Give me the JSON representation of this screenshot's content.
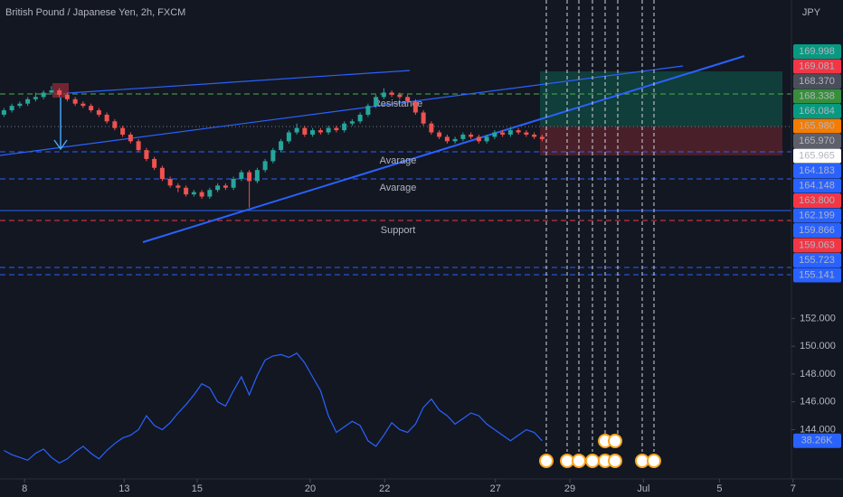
{
  "chart_data": {
    "type": "candlestick",
    "title": "British Pound / Japanese Yen, 2h, FXCM",
    "currency": "JPY",
    "up_color": "#26a69a",
    "down_color": "#ef5350",
    "ylim": [
      158.5,
      170.75
    ],
    "open": [
      167.2,
      167.4,
      167.6,
      167.7,
      167.9,
      168.0,
      168.2,
      168.3,
      168.1,
      167.9,
      167.7,
      167.6,
      167.4,
      167.2,
      166.9,
      166.6,
      166.3,
      166.0,
      165.6,
      165.2,
      164.8,
      164.3,
      164.0,
      163.9,
      163.6,
      163.7,
      163.5,
      163.8,
      164.0,
      163.9,
      164.3,
      164.6,
      164.2,
      164.7,
      165.1,
      165.6,
      166.0,
      166.4,
      166.6,
      166.3,
      166.5,
      166.4,
      166.6,
      166.5,
      166.8,
      166.9,
      167.2,
      167.6,
      168.0,
      168.2,
      168.1,
      168.0,
      167.8,
      167.3,
      166.8,
      166.4,
      166.2,
      166.0,
      166.1,
      166.3,
      166.2,
      166.0,
      166.2,
      166.4,
      166.3,
      166.5,
      166.4,
      166.3,
      166.2
    ],
    "high": [
      167.5,
      167.7,
      167.8,
      168.0,
      168.2,
      168.3,
      168.5,
      168.4,
      168.2,
      168.0,
      167.8,
      167.7,
      167.5,
      167.3,
      167.0,
      166.7,
      166.4,
      166.1,
      165.7,
      165.3,
      164.9,
      164.4,
      164.1,
      164.0,
      163.8,
      163.8,
      163.9,
      164.1,
      164.1,
      164.4,
      164.7,
      164.7,
      164.8,
      165.2,
      165.7,
      166.1,
      166.5,
      166.8,
      166.7,
      166.6,
      166.6,
      166.7,
      166.7,
      166.9,
      167.0,
      167.3,
      167.7,
      168.1,
      168.4,
      168.3,
      168.2,
      168.1,
      167.9,
      167.4,
      166.9,
      166.5,
      166.3,
      166.2,
      166.4,
      166.4,
      166.3,
      166.3,
      166.5,
      166.5,
      166.6,
      166.6,
      166.5,
      166.4,
      166.3
    ],
    "low": [
      167.1,
      167.3,
      167.5,
      167.6,
      167.8,
      167.9,
      168.1,
      168.0,
      167.8,
      167.6,
      167.5,
      167.3,
      167.1,
      166.8,
      166.5,
      166.2,
      165.9,
      165.5,
      165.1,
      164.7,
      164.2,
      163.9,
      163.7,
      163.5,
      163.5,
      163.4,
      163.4,
      163.7,
      163.8,
      163.8,
      164.2,
      163.0,
      164.1,
      164.6,
      165.0,
      165.5,
      165.9,
      166.3,
      166.2,
      166.2,
      166.3,
      166.3,
      166.4,
      166.4,
      166.7,
      166.8,
      167.1,
      167.5,
      167.9,
      168.0,
      167.9,
      167.7,
      167.2,
      166.7,
      166.3,
      166.1,
      165.9,
      165.9,
      166.0,
      166.1,
      165.9,
      165.9,
      166.1,
      166.2,
      166.2,
      166.3,
      166.2,
      166.1,
      166.0
    ],
    "close": [
      167.4,
      167.6,
      167.7,
      167.9,
      168.0,
      168.2,
      168.3,
      168.1,
      167.9,
      167.7,
      167.6,
      167.4,
      167.2,
      166.9,
      166.6,
      166.3,
      166.0,
      165.6,
      165.2,
      164.8,
      164.3,
      164.0,
      163.9,
      163.6,
      163.7,
      163.5,
      163.8,
      164.0,
      163.9,
      164.3,
      164.6,
      164.2,
      164.7,
      165.1,
      165.6,
      166.0,
      166.4,
      166.6,
      166.3,
      166.5,
      166.4,
      166.6,
      166.5,
      166.8,
      166.9,
      167.2,
      167.6,
      168.0,
      168.2,
      168.1,
      168.0,
      167.8,
      167.3,
      166.8,
      166.4,
      166.2,
      166.0,
      166.1,
      166.3,
      166.2,
      166.0,
      166.2,
      166.4,
      166.3,
      166.5,
      166.4,
      166.3,
      166.2,
      166.1
    ],
    "xlim": [
      0,
      100
    ],
    "xticks": [
      {
        "value": 3.1,
        "label": "8"
      },
      {
        "value": 15.7,
        "label": "13"
      },
      {
        "value": 24.9,
        "label": "15"
      },
      {
        "value": 39.2,
        "label": "20"
      },
      {
        "value": 48.6,
        "label": "22"
      },
      {
        "value": 62.6,
        "label": "27"
      },
      {
        "value": 72,
        "label": "29"
      },
      {
        "value": 81.3,
        "label": "Jul"
      },
      {
        "value": 90.9,
        "label": "5"
      },
      {
        "value": 100.2,
        "label": "7"
      }
    ],
    "indicator": {
      "color": "#2962ff",
      "ylim": [
        140,
        153
      ],
      "yticks": [
        {
          "value": 152,
          "label": "152.000"
        },
        {
          "value": 150,
          "label": "150.000"
        },
        {
          "value": 148,
          "label": "148.000"
        },
        {
          "value": 146,
          "label": "146.000"
        },
        {
          "value": 144,
          "label": "144.000"
        }
      ],
      "values": [
        142.5,
        142.2,
        142.0,
        141.8,
        142.3,
        142.6,
        142.0,
        141.6,
        141.9,
        142.4,
        142.8,
        142.3,
        141.9,
        142.5,
        143.0,
        143.4,
        143.6,
        144.0,
        145.0,
        144.3,
        144.0,
        144.5,
        145.2,
        145.8,
        146.5,
        147.3,
        147.0,
        146.0,
        145.7,
        146.8,
        147.8,
        146.5,
        147.9,
        149.0,
        149.3,
        149.4,
        149.2,
        149.5,
        148.8,
        147.8,
        146.8,
        145.0,
        143.8,
        144.2,
        144.6,
        144.3,
        143.2,
        142.8,
        143.6,
        144.5,
        144.0,
        143.8,
        144.4,
        145.6,
        146.2,
        145.4,
        145.0,
        144.4,
        144.8,
        145.2,
        145.0,
        144.4,
        144.0,
        143.6,
        143.2,
        143.6,
        144.0,
        143.8,
        143.2
      ],
      "label": "38.26K"
    },
    "price_labels": [
      {
        "label": "169.998",
        "color": "#089981"
      },
      {
        "label": "169.081",
        "color": "#f23645"
      },
      {
        "label": "168.370",
        "color": "#4a4e5a"
      },
      {
        "label": "168.338",
        "color": "#388e3c"
      },
      {
        "label": "166.084",
        "color": "#089981"
      },
      {
        "label": "165.980",
        "color": "#f57c00"
      },
      {
        "label": "165.970",
        "color": "#5d606b"
      },
      {
        "label": "165.965",
        "color": "#ffffff"
      },
      {
        "label": "164.183",
        "color": "#2962ff"
      },
      {
        "label": "164.148",
        "color": "#2962ff"
      },
      {
        "label": "163.800",
        "color": "#f23645"
      },
      {
        "label": "162.199",
        "color": "#2962ff"
      },
      {
        "label": "159.866",
        "color": "#2962ff"
      },
      {
        "label": "159.063",
        "color": "#f23645"
      },
      {
        "label": "155.723",
        "color": "#2962ff"
      },
      {
        "label": "155.141",
        "color": "#2962ff"
      }
    ],
    "annotations": {
      "resistance": "Resistance",
      "average_1": "Avarage",
      "average_2": "Avarage",
      "support": "Support"
    }
  }
}
